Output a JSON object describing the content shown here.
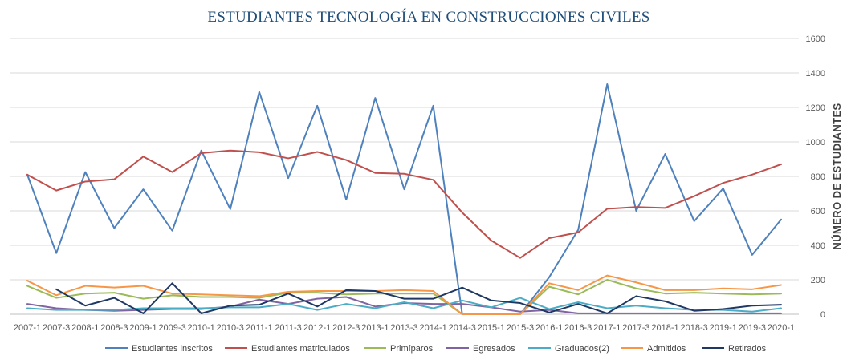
{
  "chart_data": {
    "type": "line",
    "title": "ESTUDIANTES TECNOLOGÍA EN CONSTRUCCIONES CIVILES",
    "xlabel": "",
    "ylabel": "NÚMERO DE ESTUDIANTES",
    "ylim": [
      0,
      1600
    ],
    "yticks": [
      0,
      200,
      400,
      600,
      800,
      1000,
      1200,
      1400,
      1600
    ],
    "y_axis_position": "right",
    "grid": true,
    "legend": "bottom",
    "categories": [
      "2007-1",
      "2007-3",
      "2008-1",
      "2008-3",
      "2009-1",
      "2009-3",
      "2010-1",
      "2010-3",
      "2011-1",
      "2011-3",
      "2012-1",
      "2012-3",
      "2013-1",
      "2013-3",
      "2014-1",
      "2014-3",
      "2015-1",
      "2015-3",
      "2016-1",
      "2016-3",
      "2017-1",
      "2017-3",
      "2018-1",
      "2018-3",
      "2019-1",
      "2019-3",
      "2020-1"
    ],
    "series": [
      {
        "name": "Estudiantes inscritos",
        "color": "#4f81bd",
        "values": [
          810,
          355,
          825,
          500,
          725,
          485,
          950,
          610,
          1290,
          790,
          1210,
          665,
          1255,
          725,
          1210,
          0,
          0,
          0,
          215,
          490,
          1335,
          600,
          930,
          540,
          730,
          345,
          550
        ]
      },
      {
        "name": "Estudiantes matriculados",
        "color": "#c0504d",
        "values": [
          810,
          718,
          770,
          783,
          915,
          825,
          935,
          950,
          940,
          905,
          942,
          895,
          820,
          815,
          780,
          590,
          428,
          327,
          442,
          475,
          612,
          622,
          617,
          685,
          762,
          810,
          870
        ]
      },
      {
        "name": "Primíparos",
        "color": "#9bbb59",
        "values": [
          165,
          95,
          120,
          125,
          90,
          110,
          100,
          100,
          95,
          125,
          125,
          115,
          120,
          120,
          120,
          0,
          0,
          0,
          160,
          115,
          200,
          150,
          120,
          125,
          120,
          115,
          120
        ]
      },
      {
        "name": "Egresados",
        "color": "#8064a2",
        "values": [
          60,
          35,
          25,
          20,
          25,
          30,
          30,
          45,
          85,
          60,
          90,
          100,
          45,
          65,
          60,
          60,
          40,
          15,
          25,
          5,
          5,
          5,
          5,
          5,
          5,
          5,
          5
        ]
      },
      {
        "name": "Graduados(2)",
        "color": "#4bacc6",
        "values": [
          35,
          25,
          25,
          25,
          35,
          35,
          35,
          40,
          40,
          60,
          25,
          60,
          35,
          70,
          35,
          80,
          40,
          95,
          30,
          70,
          35,
          50,
          35,
          25,
          25,
          15,
          35
        ]
      },
      {
        "name": "Admitidos",
        "color": "#f79646",
        "values": [
          195,
          110,
          165,
          155,
          165,
          120,
          115,
          110,
          105,
          130,
          135,
          135,
          135,
          140,
          135,
          0,
          0,
          0,
          180,
          140,
          225,
          185,
          140,
          140,
          150,
          145,
          170
        ]
      },
      {
        "name": "Retirados",
        "color": "#1f3864",
        "values": [
          null,
          145,
          50,
          95,
          5,
          180,
          5,
          50,
          55,
          120,
          45,
          140,
          135,
          90,
          90,
          155,
          80,
          65,
          10,
          60,
          5,
          105,
          75,
          20,
          30,
          50,
          55
        ]
      }
    ]
  }
}
